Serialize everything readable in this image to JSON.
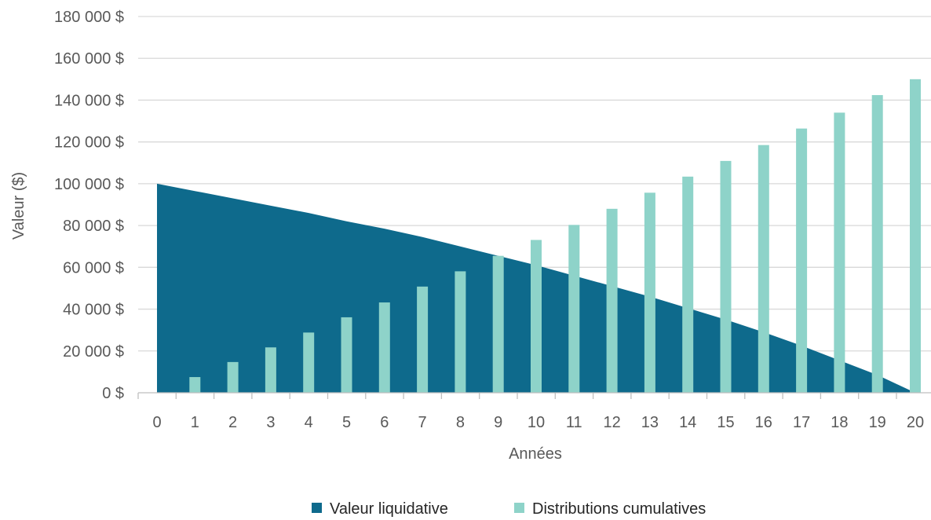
{
  "chart_data": {
    "type": "bar",
    "xlabel": "Années",
    "ylabel": "Valeur ($)",
    "ylim": [
      0,
      180000
    ],
    "y_ticks": [
      "0 $",
      "20 000 $",
      "40 000 $",
      "60 000 $",
      "80 000 $",
      "100 000 $",
      "120 000 $",
      "140 000 $",
      "160 000 $",
      "180 000 $"
    ],
    "y_tick_values": [
      0,
      20000,
      40000,
      60000,
      80000,
      100000,
      120000,
      140000,
      160000,
      180000
    ],
    "categories": [
      "0",
      "1",
      "2",
      "3",
      "4",
      "5",
      "6",
      "7",
      "8",
      "9",
      "10",
      "11",
      "12",
      "13",
      "14",
      "15",
      "16",
      "17",
      "18",
      "19",
      "20"
    ],
    "grid": true,
    "legend_position": "bottom",
    "series": [
      {
        "name": "Valeur liquidative",
        "type": "area",
        "color": "#0e6a8c",
        "values": [
          100000,
          96500,
          93000,
          89500,
          86000,
          82000,
          78500,
          74500,
          70000,
          65500,
          61000,
          56000,
          51000,
          46000,
          40500,
          35000,
          29000,
          22500,
          15500,
          8500,
          0
        ]
      },
      {
        "name": "Distributions cumulatives",
        "type": "bar",
        "color": "#8ed3c9",
        "values": [
          0,
          7500,
          14700,
          21700,
          28800,
          36100,
          43200,
          50800,
          58100,
          65500,
          73100,
          80300,
          88000,
          95700,
          103400,
          110900,
          118500,
          126400,
          134000,
          142400,
          150000
        ]
      }
    ]
  }
}
